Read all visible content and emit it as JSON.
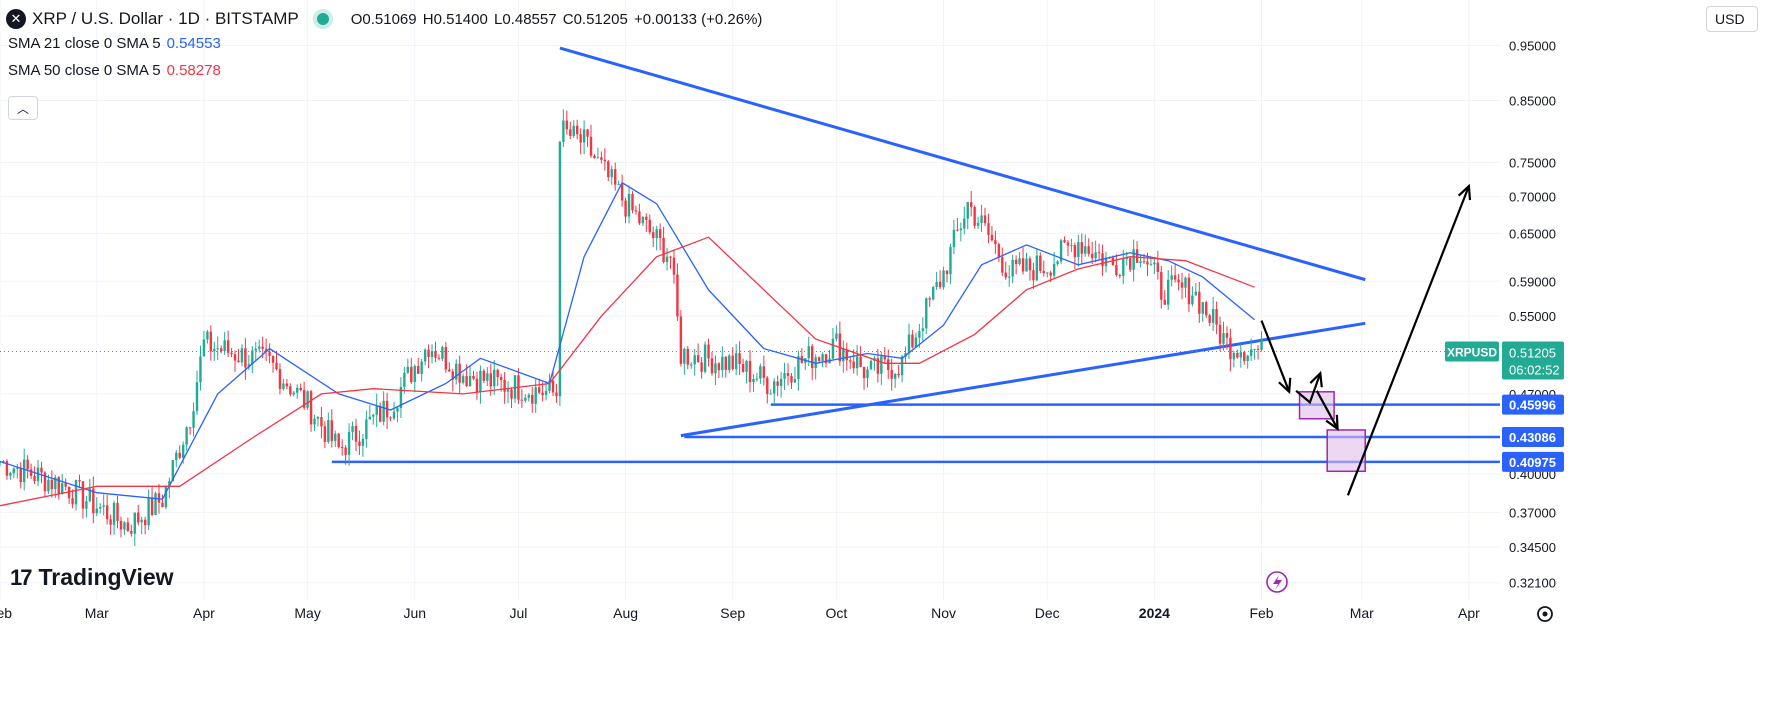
{
  "header": {
    "symbol_icon": "xrp-icon",
    "title": "XRP / U.S. Dollar · 1D · BITSTAMP",
    "ohlc": {
      "o": "O0.51069",
      "h": "H0.51400",
      "l": "L0.48557",
      "c": "C0.51205",
      "change": "+0.00133 (+0.26%)"
    }
  },
  "indicators": [
    {
      "label": "SMA 21 close 0 SMA 5",
      "value": "0.54553",
      "color": "#2962ff"
    },
    {
      "label": "SMA 50 close 0 SMA 5",
      "value": "0.58278",
      "color": "#f23645"
    }
  ],
  "currency": "USD",
  "logo": "TradingView",
  "colors": {
    "up": "#22ab94",
    "down": "#f23645",
    "sma21": "#2962ff",
    "sma50": "#f23645",
    "trend": "#2962ff",
    "zone_fill": "#e1bee7",
    "zone_stroke": "#9c27b0",
    "arrow": "#000000"
  },
  "chart_data": {
    "type": "candlestick",
    "scale": "log",
    "ylim": [
      0.31,
      1.0
    ],
    "x_range": [
      "2023-02-01",
      "2024-04-10"
    ],
    "y_ticks": [
      "0.95000",
      "0.85000",
      "0.75000",
      "0.70000",
      "0.65000",
      "0.59000",
      "0.55000",
      "0.47000",
      "0.40000",
      "0.37000",
      "0.34500",
      "0.32100"
    ],
    "x_labels": [
      {
        "label": "Feb",
        "date": "2023-02-01",
        "bold": false
      },
      {
        "label": "Mar",
        "date": "2023-03-01",
        "bold": false
      },
      {
        "label": "Apr",
        "date": "2023-04-01",
        "bold": false
      },
      {
        "label": "May",
        "date": "2023-05-01",
        "bold": false
      },
      {
        "label": "Jun",
        "date": "2023-06-01",
        "bold": false
      },
      {
        "label": "Jul",
        "date": "2023-07-01",
        "bold": false
      },
      {
        "label": "Aug",
        "date": "2023-08-01",
        "bold": false
      },
      {
        "label": "Sep",
        "date": "2023-09-01",
        "bold": false
      },
      {
        "label": "Oct",
        "date": "2023-10-01",
        "bold": false
      },
      {
        "label": "Nov",
        "date": "2023-11-01",
        "bold": false
      },
      {
        "label": "Dec",
        "date": "2023-12-01",
        "bold": false
      },
      {
        "label": "2024",
        "date": "2024-01-01",
        "bold": true
      },
      {
        "label": "Feb",
        "date": "2024-02-01",
        "bold": false
      },
      {
        "label": "Mar",
        "date": "2024-03-01",
        "bold": false
      },
      {
        "label": "Apr",
        "date": "2024-04-01",
        "bold": false
      }
    ],
    "price_line": {
      "value": 0.51205,
      "symbol": "XRPUSD",
      "price": "0.51205",
      "countdown": "06:02:52"
    },
    "level_labels": [
      "0.45996",
      "0.43086",
      "0.40975"
    ],
    "anchors": [
      {
        "date": "2023-02-01",
        "price": 0.41
      },
      {
        "date": "2023-02-20",
        "price": 0.39
      },
      {
        "date": "2023-03-10",
        "price": 0.36
      },
      {
        "date": "2023-03-20",
        "price": 0.38
      },
      {
        "date": "2023-03-28",
        "price": 0.45
      },
      {
        "date": "2023-04-01",
        "price": 0.52
      },
      {
        "date": "2023-04-10",
        "price": 0.51
      },
      {
        "date": "2023-04-20",
        "price": 0.5
      },
      {
        "date": "2023-05-01",
        "price": 0.46
      },
      {
        "date": "2023-05-10",
        "price": 0.42
      },
      {
        "date": "2023-05-25",
        "price": 0.46
      },
      {
        "date": "2023-06-05",
        "price": 0.52
      },
      {
        "date": "2023-06-15",
        "price": 0.49
      },
      {
        "date": "2023-06-25",
        "price": 0.48
      },
      {
        "date": "2023-07-12",
        "price": 0.47
      },
      {
        "date": "2023-07-13",
        "price": 0.8
      },
      {
        "date": "2023-07-20",
        "price": 0.78
      },
      {
        "date": "2023-08-01",
        "price": 0.69
      },
      {
        "date": "2023-08-14",
        "price": 0.62
      },
      {
        "date": "2023-08-17",
        "price": 0.51
      },
      {
        "date": "2023-09-01",
        "price": 0.5
      },
      {
        "date": "2023-09-12",
        "price": 0.48
      },
      {
        "date": "2023-09-20",
        "price": 0.5
      },
      {
        "date": "2023-10-01",
        "price": 0.52
      },
      {
        "date": "2023-10-10",
        "price": 0.49
      },
      {
        "date": "2023-10-20",
        "price": 0.5
      },
      {
        "date": "2023-11-01",
        "price": 0.6
      },
      {
        "date": "2023-11-08",
        "price": 0.69
      },
      {
        "date": "2023-11-15",
        "price": 0.64
      },
      {
        "date": "2023-11-20",
        "price": 0.6
      },
      {
        "date": "2023-12-01",
        "price": 0.61
      },
      {
        "date": "2023-12-10",
        "price": 0.64
      },
      {
        "date": "2023-12-20",
        "price": 0.61
      },
      {
        "date": "2023-12-28",
        "price": 0.63
      },
      {
        "date": "2024-01-03",
        "price": 0.58
      },
      {
        "date": "2024-01-12",
        "price": 0.58
      },
      {
        "date": "2024-01-22",
        "price": 0.52
      },
      {
        "date": "2024-02-01",
        "price": 0.51205
      }
    ],
    "sma21_points": [
      {
        "date": "2023-02-01",
        "price": 0.41
      },
      {
        "date": "2023-03-01",
        "price": 0.385
      },
      {
        "date": "2023-03-20",
        "price": 0.38
      },
      {
        "date": "2023-04-05",
        "price": 0.47
      },
      {
        "date": "2023-04-20",
        "price": 0.515
      },
      {
        "date": "2023-05-10",
        "price": 0.47
      },
      {
        "date": "2023-05-25",
        "price": 0.455
      },
      {
        "date": "2023-06-10",
        "price": 0.48
      },
      {
        "date": "2023-06-20",
        "price": 0.505
      },
      {
        "date": "2023-07-10",
        "price": 0.48
      },
      {
        "date": "2023-07-20",
        "price": 0.62
      },
      {
        "date": "2023-07-31",
        "price": 0.72
      },
      {
        "date": "2023-08-10",
        "price": 0.69
      },
      {
        "date": "2023-08-25",
        "price": 0.58
      },
      {
        "date": "2023-09-10",
        "price": 0.515
      },
      {
        "date": "2023-09-25",
        "price": 0.5
      },
      {
        "date": "2023-10-10",
        "price": 0.51
      },
      {
        "date": "2023-10-20",
        "price": 0.505
      },
      {
        "date": "2023-11-01",
        "price": 0.54
      },
      {
        "date": "2023-11-12",
        "price": 0.61
      },
      {
        "date": "2023-11-25",
        "price": 0.635
      },
      {
        "date": "2023-12-10",
        "price": 0.61
      },
      {
        "date": "2023-12-25",
        "price": 0.625
      },
      {
        "date": "2024-01-05",
        "price": 0.615
      },
      {
        "date": "2024-01-15",
        "price": 0.595
      },
      {
        "date": "2024-01-30",
        "price": 0.546
      }
    ],
    "sma50_points": [
      {
        "date": "2023-02-01",
        "price": 0.375
      },
      {
        "date": "2023-03-01",
        "price": 0.39
      },
      {
        "date": "2023-03-25",
        "price": 0.39
      },
      {
        "date": "2023-04-15",
        "price": 0.43
      },
      {
        "date": "2023-05-05",
        "price": 0.47
      },
      {
        "date": "2023-05-20",
        "price": 0.475
      },
      {
        "date": "2023-06-15",
        "price": 0.47
      },
      {
        "date": "2023-07-10",
        "price": 0.48
      },
      {
        "date": "2023-07-25",
        "price": 0.55
      },
      {
        "date": "2023-08-10",
        "price": 0.62
      },
      {
        "date": "2023-08-25",
        "price": 0.645
      },
      {
        "date": "2023-09-10",
        "price": 0.58
      },
      {
        "date": "2023-09-25",
        "price": 0.525
      },
      {
        "date": "2023-10-15",
        "price": 0.5
      },
      {
        "date": "2023-10-25",
        "price": 0.5
      },
      {
        "date": "2023-11-10",
        "price": 0.53
      },
      {
        "date": "2023-11-25",
        "price": 0.58
      },
      {
        "date": "2023-12-10",
        "price": 0.605
      },
      {
        "date": "2023-12-25",
        "price": 0.62
      },
      {
        "date": "2024-01-10",
        "price": 0.615
      },
      {
        "date": "2024-01-30",
        "price": 0.583
      }
    ],
    "trendlines": [
      {
        "from": {
          "date": "2023-07-13",
          "price": 0.945
        },
        "to": {
          "date": "2024-03-02",
          "price": 0.592
        }
      },
      {
        "from": {
          "date": "2023-08-17",
          "price": 0.432
        },
        "to": {
          "date": "2024-03-02",
          "price": 0.542
        }
      }
    ],
    "levels": [
      {
        "from": "2023-09-12",
        "to": "2024-04-12",
        "price": 0.45996
      },
      {
        "from": "2023-08-18",
        "to": "2024-04-12",
        "price": 0.43086
      },
      {
        "from": "2023-05-08",
        "to": "2024-04-12",
        "price": 0.40975
      }
    ],
    "zones": [
      {
        "from": "2024-02-12",
        "to": "2024-02-22",
        "top": 0.472,
        "bottom": 0.447
      },
      {
        "from": "2024-02-20",
        "to": "2024-03-02",
        "top": 0.437,
        "bottom": 0.402
      }
    ],
    "arrows": [
      {
        "points": [
          {
            "date": "2024-02-01",
            "price": 0.545
          },
          {
            "date": "2024-02-09",
            "price": 0.472
          }
        ]
      },
      {
        "points": [
          {
            "date": "2024-02-11",
            "price": 0.473
          },
          {
            "date": "2024-02-15",
            "price": 0.462
          },
          {
            "date": "2024-02-18",
            "price": 0.49
          }
        ]
      },
      {
        "points": [
          {
            "date": "2024-02-17",
            "price": 0.473
          },
          {
            "date": "2024-02-23",
            "price": 0.438
          }
        ]
      },
      {
        "points": [
          {
            "date": "2024-02-26",
            "price": 0.383
          },
          {
            "date": "2024-04-01",
            "price": 0.715
          }
        ]
      }
    ]
  }
}
